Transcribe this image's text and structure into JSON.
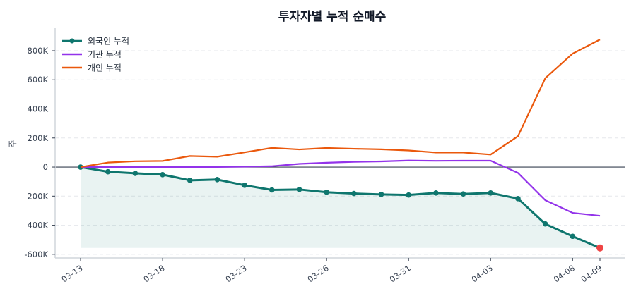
{
  "chart_data": {
    "type": "line",
    "title": "투자자별 누적 순매수",
    "ylabel": "주",
    "xlabel": "",
    "categories": [
      "03-13",
      "",
      "",
      "03-18",
      "",
      "",
      "03-23",
      "",
      "",
      "03-26",
      "",
      "",
      "03-31",
      "",
      "",
      "04-03",
      "",
      "",
      "04-08",
      "04-09"
    ],
    "ylim": [
      -625000,
      955000
    ],
    "yticks": [
      -600000,
      -400000,
      -200000,
      0,
      200000,
      400000,
      600000,
      800000
    ],
    "ytick_labels": [
      "-600K",
      "-400K",
      "-200K",
      "0",
      "200K",
      "400K",
      "600K",
      "800K"
    ],
    "grid": "horizontal dashed",
    "legend": "top-left",
    "series": [
      {
        "name": "외국인 누적",
        "color": "#0f766e",
        "markers": true,
        "fill": true,
        "last_marker_color": "#ef4444",
        "values": [
          0,
          -32000,
          -43000,
          -52000,
          -91000,
          -86000,
          -125000,
          -157000,
          -154000,
          -173000,
          -182000,
          -188000,
          -192000,
          -178000,
          -185000,
          -178000,
          -217000,
          -391000,
          -476000,
          -556000
        ]
      },
      {
        "name": "기관 누적",
        "color": "#9333ea",
        "markers": false,
        "values": [
          0,
          0,
          0,
          0,
          0,
          1000,
          3000,
          6000,
          22000,
          30000,
          36000,
          39000,
          45000,
          43000,
          44000,
          44000,
          -40000,
          -228000,
          -315000,
          -335000
        ]
      },
      {
        "name": "개인 누적",
        "color": "#ea580c",
        "markers": false,
        "values": [
          0,
          31000,
          40000,
          42000,
          76000,
          71000,
          101000,
          132000,
          121000,
          131000,
          126000,
          122000,
          114000,
          100000,
          100000,
          86000,
          212000,
          611000,
          780000,
          877000
        ]
      }
    ]
  }
}
